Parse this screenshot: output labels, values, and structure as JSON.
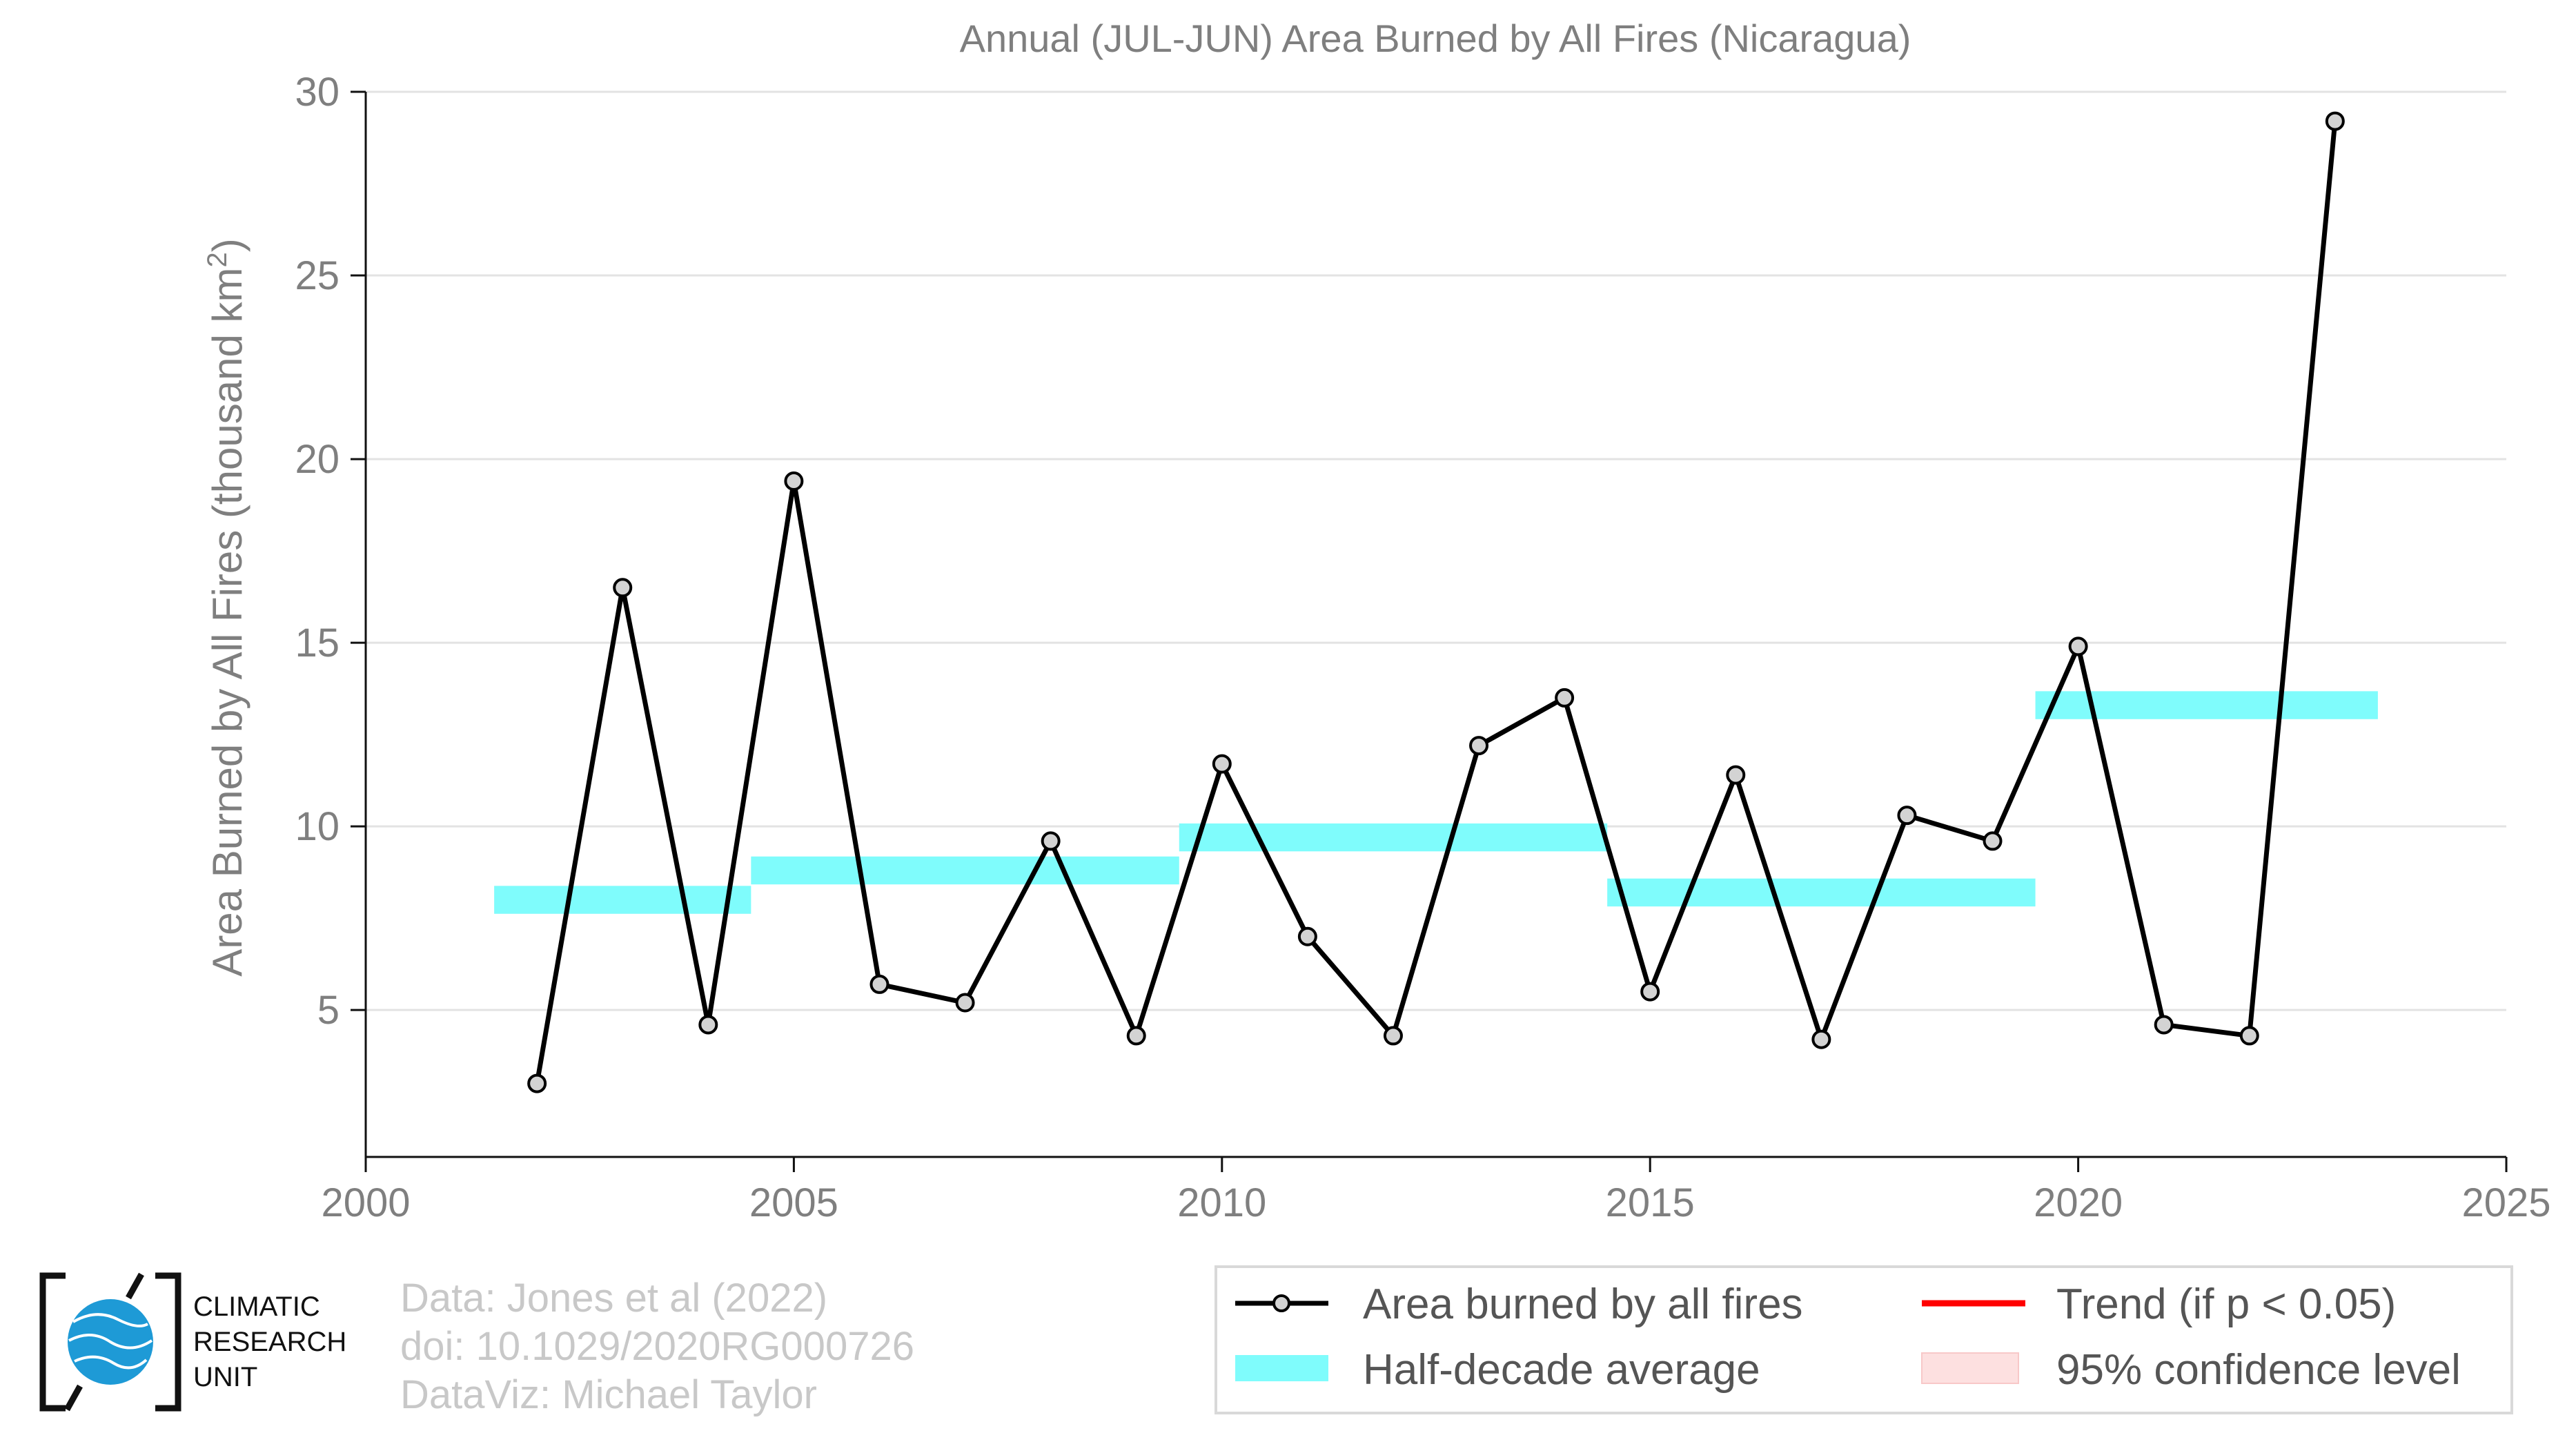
{
  "chart_data": {
    "type": "line",
    "title": "Annual (JUL-JUN) Area Burned by All Fires (Nicaragua)",
    "xlabel": "",
    "ylabel": "Area Burned by All Fires (thousand km",
    "ylabel_sup": "2",
    "ylabel_close": ")",
    "xlim": [
      2000,
      2025
    ],
    "ylim": [
      1,
      30
    ],
    "xticks": [
      2000,
      2005,
      2010,
      2015,
      2020,
      2025
    ],
    "yticks": [
      5,
      10,
      15,
      20,
      25,
      30
    ],
    "grid": "horizontal",
    "series": [
      {
        "name": "Area burned by all fires",
        "color": "#000000",
        "marker_color": "#d3d3d3",
        "x": [
          2002,
          2003,
          2004,
          2005,
          2006,
          2007,
          2008,
          2009,
          2010,
          2011,
          2012,
          2013,
          2014,
          2015,
          2016,
          2017,
          2018,
          2019,
          2020,
          2021,
          2022,
          2023
        ],
        "y": [
          3.0,
          16.5,
          4.6,
          19.4,
          5.7,
          5.2,
          9.6,
          4.3,
          11.7,
          7.0,
          4.3,
          12.2,
          13.5,
          5.5,
          11.4,
          4.2,
          10.3,
          9.6,
          14.9,
          4.6,
          4.3,
          29.2
        ]
      }
    ],
    "half_decade_average": {
      "name": "Half-decade average",
      "color": "#7ffcfc",
      "segments": [
        {
          "x0": 2001.5,
          "x1": 2004.5,
          "y": 8.0
        },
        {
          "x0": 2004.5,
          "x1": 2009.5,
          "y": 8.8
        },
        {
          "x0": 2009.5,
          "x1": 2014.5,
          "y": 9.7
        },
        {
          "x0": 2014.5,
          "x1": 2019.5,
          "y": 8.2
        },
        {
          "x0": 2019.5,
          "x1": 2023.5,
          "y": 13.3
        }
      ]
    },
    "legend": {
      "placement": "bottom-right",
      "items": [
        {
          "label": "Area burned by all fires",
          "kind": "line-marker",
          "color": "#000000"
        },
        {
          "label": "Trend (if p < 0.05)",
          "kind": "line",
          "color": "#ff0000"
        },
        {
          "label": "Half-decade average",
          "kind": "band",
          "color": "#7ffcfc"
        },
        {
          "label": "95% confidence level",
          "kind": "patch",
          "color": "#fde0e0"
        }
      ]
    }
  },
  "credits": {
    "line1": "Data: Jones et al (2022)",
    "line2": "doi: 10.1029/2020RG000726",
    "line3": "DataViz: Michael Taylor"
  },
  "logo": {
    "line1": "CLIMATIC",
    "line2": "RESEARCH",
    "line3": "UNIT",
    "icon": "globe-icon",
    "color": "#1e9ad6"
  }
}
